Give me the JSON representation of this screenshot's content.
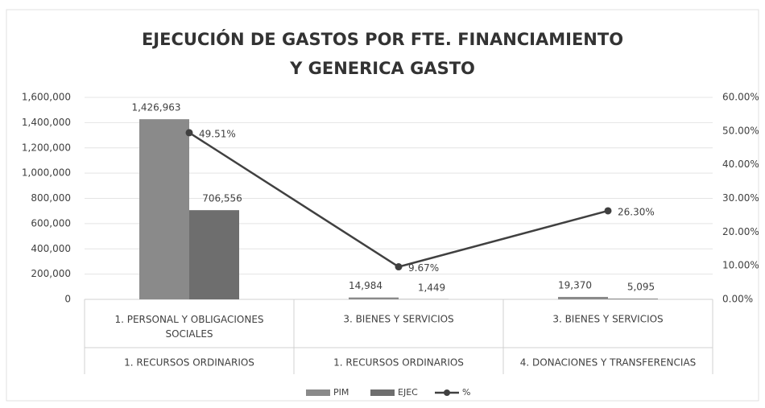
{
  "chart_data": {
    "type": "bar",
    "title": [
      "EJECUCIÓN DE GASTOS POR FTE. FINANCIAMIENTO",
      "Y GENERICA GASTO"
    ],
    "categories": [
      "1. PERSONAL Y OBLIGACIONES SOCIALES",
      "3. BIENES Y SERVICIOS",
      "3. BIENES Y SERVICIOS"
    ],
    "category_groups": [
      "1. RECURSOS ORDINARIOS",
      "1. RECURSOS ORDINARIOS",
      "4. DONACIONES Y TRANSFERENCIAS"
    ],
    "series": [
      {
        "name": "PIM",
        "type": "bar",
        "color": "#8a8a8a",
        "values": [
          1426963,
          14984,
          19370
        ],
        "value_labels": [
          "1,426,963",
          "14,984",
          "19,370"
        ]
      },
      {
        "name": "EJEC",
        "type": "bar",
        "color": "#6e6e6e",
        "values": [
          706556,
          1449,
          5095
        ],
        "value_labels": [
          "706,556",
          "1,449",
          "5,095"
        ]
      },
      {
        "name": "%",
        "type": "line",
        "axis": "y2",
        "color": "#404040",
        "values": [
          49.51,
          9.67,
          26.3
        ],
        "value_labels": [
          "49.51%",
          "9.67%",
          "26.30%"
        ]
      }
    ],
    "ylim": [
      0,
      1600000
    ],
    "yticks": [
      0,
      {
        "value": 200000,
        "label": "200,000"
      },
      {
        "value": 400000,
        "label": "400,000"
      },
      {
        "value": 600000,
        "label": "600,000"
      },
      {
        "value": 800000,
        "label": "800,000"
      },
      {
        "value": 1000000,
        "label": "1,000,000"
      },
      {
        "value": 1200000,
        "label": "1,200,000"
      },
      {
        "value": 1400000,
        "label": "1,400,000"
      },
      {
        "value": 1600000,
        "label": "1,600,000"
      }
    ],
    "y2lim": [
      0,
      60
    ],
    "y2ticks": [
      {
        "value": 0,
        "label": "0.00%"
      },
      {
        "value": 10,
        "label": "10.00%"
      },
      {
        "value": 20,
        "label": "20.00%"
      },
      {
        "value": 30,
        "label": "30.00%"
      },
      {
        "value": 40,
        "label": "40.00%"
      },
      {
        "value": 50,
        "label": "50.00%"
      },
      {
        "value": 60,
        "label": "60.00%"
      }
    ],
    "grid": true,
    "legend": "bottom"
  }
}
